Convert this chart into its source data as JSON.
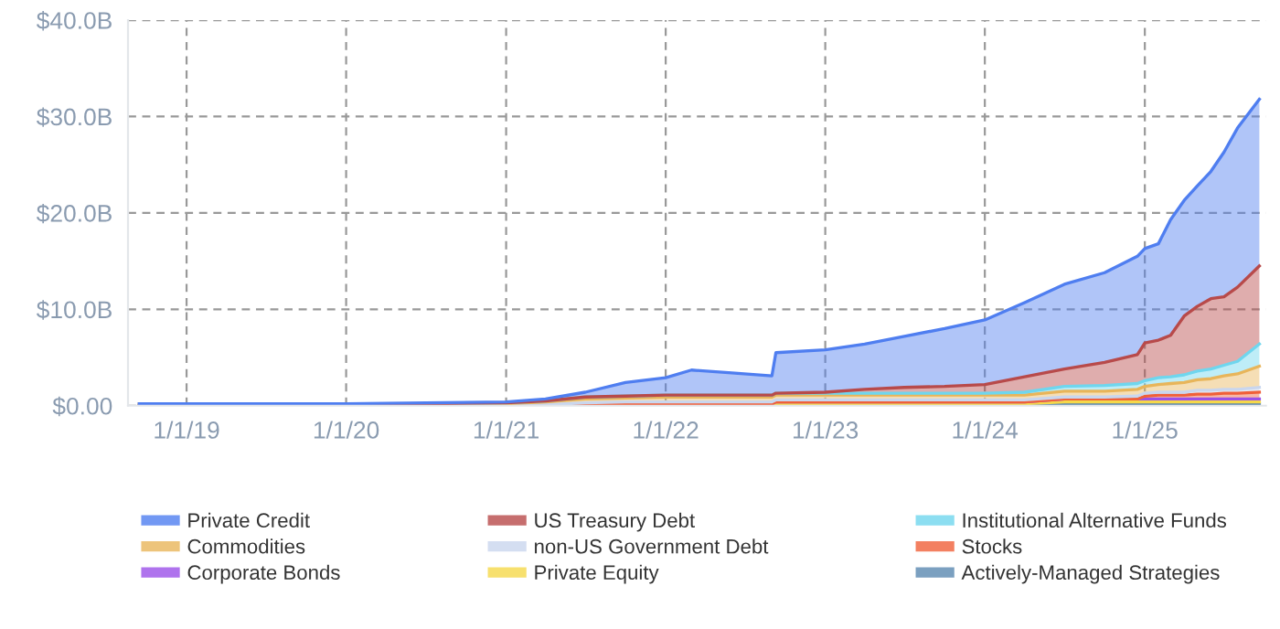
{
  "chart_data": {
    "type": "area",
    "stacked": true,
    "x": [
      "2018-09-15",
      "2019-06-01",
      "2020-01-01",
      "2020-07-01",
      "2021-01-01",
      "2021-04-01",
      "2021-07-01",
      "2021-10-01",
      "2022-01-01",
      "2022-03-01",
      "2022-06-01",
      "2022-09-01",
      "2022-09-10",
      "2023-01-01",
      "2023-04-01",
      "2023-07-01",
      "2023-10-01",
      "2024-01-01",
      "2024-04-01",
      "2024-07-01",
      "2024-10-01",
      "2024-12-15",
      "2025-01-01",
      "2025-02-01",
      "2025-03-01",
      "2025-04-01",
      "2025-05-01",
      "2025-06-01",
      "2025-07-01",
      "2025-08-01",
      "2025-09-20"
    ],
    "series": [
      {
        "name": "Actively-Managed Strategies",
        "color": "#5a88b0",
        "values": [
          0,
          0,
          0,
          0,
          0,
          0,
          0,
          0,
          0,
          0,
          0,
          0,
          0,
          0,
          0,
          0,
          0,
          0,
          0,
          0.2,
          0.2,
          0.2,
          0.2,
          0.2,
          0.2,
          0.2,
          0.2,
          0.2,
          0.2,
          0.2,
          0.2
        ]
      },
      {
        "name": "Private Equity",
        "color": "#f5d84a",
        "values": [
          0,
          0,
          0,
          0,
          0,
          0,
          0.2,
          0.2,
          0.2,
          0.2,
          0.2,
          0.2,
          0.2,
          0.2,
          0.2,
          0.2,
          0.2,
          0.2,
          0.2,
          0.2,
          0.2,
          0.2,
          0.2,
          0.2,
          0.2,
          0.2,
          0.2,
          0.2,
          0.2,
          0.2,
          0.2
        ]
      },
      {
        "name": "Corporate Bonds",
        "color": "#9b50e8",
        "values": [
          0,
          0,
          0,
          0,
          0,
          0,
          0,
          0,
          0,
          0,
          0,
          0,
          0.2,
          0.2,
          0.2,
          0.2,
          0.2,
          0.2,
          0.2,
          0.3,
          0.3,
          0.3,
          0.3,
          0.3,
          0.3,
          0.3,
          0.3,
          0.3,
          0.3,
          0.3,
          0.3
        ]
      },
      {
        "name": "Stocks",
        "color": "#f0603a",
        "values": [
          0,
          0,
          0,
          0,
          0,
          0,
          0,
          0,
          0,
          0,
          0,
          0,
          0,
          0,
          0,
          0,
          0,
          0,
          0,
          0,
          0,
          0,
          0.3,
          0.4,
          0.4,
          0.4,
          0.5,
          0.5,
          0.6,
          0.6,
          0.7
        ]
      },
      {
        "name": "non-US Government Debt",
        "color": "#c9d6ee",
        "values": [
          0,
          0,
          0,
          0,
          0,
          0.1,
          0.1,
          0.2,
          0.2,
          0.2,
          0.2,
          0.2,
          0.2,
          0.2,
          0.2,
          0.2,
          0.2,
          0.2,
          0.2,
          0.2,
          0.2,
          0.3,
          0.3,
          0.3,
          0.3,
          0.3,
          0.4,
          0.4,
          0.4,
          0.4,
          0.5
        ]
      },
      {
        "name": "Commodities",
        "color": "#e8b55a",
        "values": [
          0.1,
          0.1,
          0.1,
          0.1,
          0.2,
          0.3,
          0.4,
          0.4,
          0.5,
          0.5,
          0.5,
          0.5,
          0.5,
          0.5,
          0.5,
          0.5,
          0.5,
          0.5,
          0.5,
          0.6,
          0.6,
          0.7,
          0.7,
          0.8,
          0.9,
          1.0,
          1.1,
          1.2,
          1.4,
          1.6,
          2.2
        ]
      },
      {
        "name": "Institutional Alternative Funds",
        "color": "#6fd6ee",
        "values": [
          0.1,
          0.1,
          0.1,
          0.1,
          0.1,
          0.1,
          0.2,
          0.2,
          0.2,
          0.2,
          0.2,
          0.2,
          0.2,
          0.2,
          0.2,
          0.2,
          0.2,
          0.2,
          0.3,
          0.5,
          0.6,
          0.6,
          0.6,
          0.7,
          0.7,
          0.8,
          0.9,
          1.0,
          1.1,
          1.3,
          2.3
        ]
      },
      {
        "name": "US Treasury Debt",
        "color": "#b84a4a",
        "values": [
          0,
          0,
          0,
          0,
          0,
          0,
          0,
          0,
          0,
          0,
          0,
          0,
          0,
          0.1,
          0.4,
          0.6,
          0.7,
          0.9,
          1.6,
          1.8,
          2.4,
          3.0,
          3.9,
          3.9,
          4.3,
          6.1,
          6.7,
          7.3,
          7.1,
          7.7,
          8.1
        ]
      },
      {
        "name": "Private Credit",
        "color": "#4f7ef0",
        "values": [
          0,
          0,
          0,
          0.1,
          0.1,
          0.2,
          0.5,
          1.4,
          1.8,
          2.6,
          2.3,
          2.0,
          4.2,
          4.4,
          4.7,
          5.3,
          6.0,
          6.7,
          7.7,
          8.8,
          9.3,
          10.2,
          9.8,
          10.0,
          12.0,
          12.0,
          12.5,
          13.2,
          15.0,
          16.5,
          17.3
        ]
      }
    ],
    "xlim": [
      "2018-08-20",
      "2025-10-05"
    ],
    "xticks": [
      {
        "value": "2019-01-01",
        "label": "1/1/19"
      },
      {
        "value": "2020-01-01",
        "label": "1/1/20"
      },
      {
        "value": "2021-01-01",
        "label": "1/1/21"
      },
      {
        "value": "2022-01-01",
        "label": "1/1/22"
      },
      {
        "value": "2023-01-01",
        "label": "1/1/23"
      },
      {
        "value": "2024-01-01",
        "label": "1/1/24"
      },
      {
        "value": "2025-01-01",
        "label": "1/1/25"
      }
    ],
    "ylim": [
      0,
      40
    ],
    "yticks": [
      {
        "value": 0,
        "label": "$0.00"
      },
      {
        "value": 10,
        "label": "$10.0B"
      },
      {
        "value": 20,
        "label": "$20.0B"
      },
      {
        "value": 30,
        "label": "$30.0B"
      },
      {
        "value": 40,
        "label": "$40.0B"
      }
    ],
    "grid": true,
    "legend": "bottom"
  }
}
